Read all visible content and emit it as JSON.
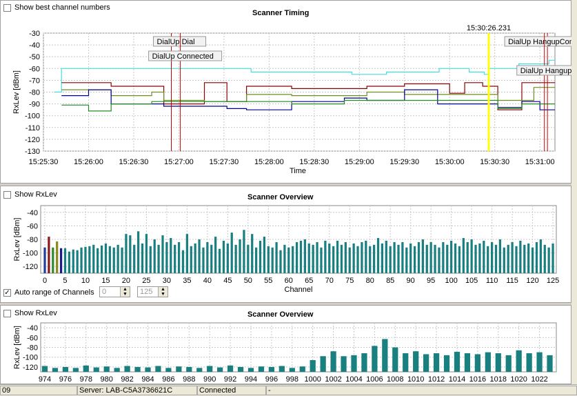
{
  "timing": {
    "checkbox_label": "Show best channel numbers",
    "title": "Scanner Timing",
    "cursor_time": "15:30:26.231",
    "ylabel": "RxLev [dBm]",
    "xlabel": "Time",
    "events": [
      {
        "label": "DialUp Dial",
        "color": "#c00000"
      },
      {
        "label": "DialUp Connected",
        "color": "#c00000"
      },
      {
        "label": "DialUp HangupCompleted",
        "color": "#c00000"
      },
      {
        "label": "DialUp Hangup",
        "color": "#c00000"
      }
    ]
  },
  "overview1": {
    "checkbox_label": "Show RxLev",
    "title": "Scanner Overview",
    "ylabel": "RxLev [dBm]",
    "xlabel": "Channel"
  },
  "auto_range": {
    "label": "Auto range of Channels",
    "min": "0",
    "max": "125"
  },
  "overview2": {
    "checkbox_label": "Show RxLev",
    "title": "Scanner Overview",
    "ylabel": "RxLev [dBm]"
  },
  "status": {
    "left": "09",
    "server": "Server: LAB-C5A3736621C",
    "state": "Connected",
    "extra": "-"
  },
  "colors": {
    "bar": "#1a7f7f",
    "accent": "#00e0e0",
    "cursor": "#ffff00"
  },
  "chart_data": [
    {
      "type": "line",
      "title": "Scanner Timing",
      "xlabel": "Time",
      "ylabel": "RxLev [dBm]",
      "ylim": [
        -130,
        -30
      ],
      "yticks": [
        -30,
        -40,
        -50,
        -60,
        -70,
        -80,
        -90,
        -100,
        -110,
        -120,
        -130
      ],
      "xlim_sec": [
        0,
        340
      ],
      "xticks": [
        {
          "t": 0,
          "label": "15:25:30"
        },
        {
          "t": 30,
          "label": "15:26:00"
        },
        {
          "t": 60,
          "label": "15:26:30"
        },
        {
          "t": 90,
          "label": "15:27:00"
        },
        {
          "t": 120,
          "label": "15:27:30"
        },
        {
          "t": 150,
          "label": "15:28:00"
        },
        {
          "t": 180,
          "label": "15:28:30"
        },
        {
          "t": 210,
          "label": "15:29:00"
        },
        {
          "t": 240,
          "label": "15:29:30"
        },
        {
          "t": 270,
          "label": "15:30:00"
        },
        {
          "t": 300,
          "label": "15:30:30"
        },
        {
          "t": 330,
          "label": "15:31:00"
        }
      ],
      "cursor_t": 296,
      "event_times": [
        85,
        91,
        335,
        333
      ],
      "series": [
        {
          "name": "cyan",
          "color": "#40e0e0",
          "points": [
            [
              7,
              -80
            ],
            [
              12,
              -80
            ],
            [
              12,
              -60
            ],
            [
              138,
              -60
            ],
            [
              138,
              -63
            ],
            [
              205,
              -63
            ],
            [
              205,
              -65
            ],
            [
              228,
              -65
            ],
            [
              228,
              -63
            ],
            [
              263,
              -63
            ],
            [
              263,
              -60
            ],
            [
              283,
              -60
            ],
            [
              283,
              -63
            ],
            [
              293,
              -63
            ],
            [
              293,
              -65
            ],
            [
              296,
              -65
            ],
            [
              296,
              -60
            ],
            [
              316,
              -60
            ],
            [
              316,
              -56
            ],
            [
              336,
              -56
            ],
            [
              336,
              -53
            ],
            [
              340,
              -53
            ]
          ]
        },
        {
          "name": "darkred",
          "color": "#8b0000",
          "points": [
            [
              12,
              -72
            ],
            [
              45,
              -72
            ],
            [
              45,
              -75
            ],
            [
              80,
              -75
            ],
            [
              80,
              -90
            ],
            [
              107,
              -90
            ],
            [
              107,
              -72
            ],
            [
              122,
              -72
            ],
            [
              122,
              -88
            ],
            [
              135,
              -88
            ],
            [
              135,
              -75
            ],
            [
              165,
              -75
            ],
            [
              165,
              -77
            ],
            [
              215,
              -77
            ],
            [
              215,
              -75
            ],
            [
              240,
              -75
            ],
            [
              240,
              -73
            ],
            [
              270,
              -73
            ],
            [
              270,
              -81
            ],
            [
              280,
              -81
            ],
            [
              280,
              -72
            ],
            [
              292,
              -72
            ],
            [
              292,
              -75
            ],
            [
              302,
              -75
            ],
            [
              302,
              -95
            ],
            [
              318,
              -95
            ],
            [
              318,
              -72
            ],
            [
              340,
              -72
            ]
          ]
        },
        {
          "name": "olive",
          "color": "#6b8e23",
          "points": [
            [
              12,
              -78
            ],
            [
              45,
              -78
            ],
            [
              45,
              -83
            ],
            [
              72,
              -83
            ],
            [
              72,
              -80
            ],
            [
              80,
              -80
            ],
            [
              80,
              -87
            ],
            [
              107,
              -87
            ],
            [
              107,
              -88
            ],
            [
              135,
              -88
            ],
            [
              135,
              -82
            ],
            [
              165,
              -82
            ],
            [
              165,
              -83
            ],
            [
              215,
              -83
            ],
            [
              215,
              -80
            ],
            [
              240,
              -80
            ],
            [
              240,
              -82
            ],
            [
              302,
              -82
            ],
            [
              302,
              -87
            ],
            [
              326,
              -87
            ],
            [
              326,
              -76
            ],
            [
              340,
              -76
            ]
          ]
        },
        {
          "name": "blue",
          "color": "#00008b",
          "points": [
            [
              12,
              -83
            ],
            [
              30,
              -83
            ],
            [
              30,
              -78
            ],
            [
              45,
              -78
            ],
            [
              45,
              -90
            ],
            [
              80,
              -90
            ],
            [
              80,
              -92
            ],
            [
              122,
              -92
            ],
            [
              122,
              -94
            ],
            [
              135,
              -94
            ],
            [
              135,
              -95
            ],
            [
              165,
              -95
            ],
            [
              165,
              -88
            ],
            [
              200,
              -88
            ],
            [
              200,
              -85
            ],
            [
              215,
              -85
            ],
            [
              215,
              -87
            ],
            [
              240,
              -87
            ],
            [
              240,
              -78
            ],
            [
              262,
              -78
            ],
            [
              262,
              -90
            ],
            [
              302,
              -90
            ],
            [
              302,
              -93
            ],
            [
              318,
              -93
            ],
            [
              318,
              -88
            ],
            [
              330,
              -88
            ],
            [
              330,
              -95
            ],
            [
              340,
              -95
            ]
          ]
        },
        {
          "name": "green",
          "color": "#228b22",
          "points": [
            [
              12,
              -91
            ],
            [
              30,
              -91
            ],
            [
              30,
              -96
            ],
            [
              45,
              -96
            ],
            [
              45,
              -90
            ],
            [
              72,
              -90
            ],
            [
              72,
              -88
            ],
            [
              165,
              -88
            ],
            [
              165,
              -90
            ],
            [
              200,
              -90
            ],
            [
              200,
              -87
            ],
            [
              302,
              -87
            ],
            [
              302,
              -94
            ],
            [
              318,
              -94
            ],
            [
              318,
              -90
            ],
            [
              340,
              -90
            ]
          ]
        }
      ]
    },
    {
      "type": "bar",
      "title": "Scanner Overview",
      "xlabel": "Channel",
      "ylabel": "RxLev [dBm]",
      "ylim": [
        -130,
        -30
      ],
      "xlim": [
        0,
        125
      ],
      "yticks": [
        -40,
        -60,
        -80,
        -100,
        -120
      ],
      "xticks": [
        0,
        5,
        10,
        15,
        20,
        25,
        30,
        35,
        40,
        45,
        50,
        55,
        60,
        65,
        70,
        75,
        80,
        85,
        90,
        95,
        100,
        105,
        110,
        115,
        120,
        125
      ],
      "channels": [
        0,
        1,
        2,
        3,
        4,
        5,
        6,
        7,
        8,
        9,
        10,
        11,
        12,
        13,
        14,
        15,
        16,
        17,
        18,
        19,
        20,
        21,
        22,
        23,
        24,
        25,
        26,
        27,
        28,
        29,
        30,
        31,
        32,
        33,
        34,
        35,
        36,
        37,
        38,
        39,
        40,
        41,
        42,
        43,
        44,
        45,
        46,
        47,
        48,
        49,
        50,
        51,
        52,
        53,
        54,
        55,
        56,
        57,
        58,
        59,
        60,
        61,
        62,
        63,
        64,
        65,
        66,
        67,
        68,
        69,
        70,
        71,
        72,
        73,
        74,
        75,
        76,
        77,
        78,
        79,
        80,
        81,
        82,
        83,
        84,
        85,
        86,
        87,
        88,
        89,
        90,
        91,
        92,
        93,
        94,
        95,
        96,
        97,
        98,
        99,
        100,
        101,
        102,
        103,
        104,
        105,
        106,
        107,
        108,
        109,
        110,
        111,
        112,
        113,
        114,
        115,
        116,
        117,
        118,
        119,
        120,
        121,
        122,
        123,
        124,
        125
      ],
      "values": [
        -92,
        -76,
        -92,
        -83,
        -93,
        -93,
        -98,
        -95,
        -96,
        -92,
        -91,
        -90,
        -88,
        -93,
        -89,
        -86,
        -90,
        -92,
        -88,
        -92,
        -72,
        -74,
        -88,
        -68,
        -86,
        -72,
        -90,
        -80,
        -88,
        -74,
        -84,
        -78,
        -88,
        -84,
        -96,
        -72,
        -90,
        -86,
        -80,
        -92,
        -84,
        -88,
        -76,
        -94,
        -82,
        -86,
        -70,
        -88,
        -80,
        -66,
        -88,
        -72,
        -92,
        -82,
        -76,
        -90,
        -92,
        -84,
        -96,
        -88,
        -92,
        -90,
        -84,
        -82,
        -80,
        -86,
        -88,
        -84,
        -92,
        -82,
        -86,
        -90,
        -82,
        -88,
        -84,
        -92,
        -86,
        -90,
        -84,
        -82,
        -90,
        -88,
        -78,
        -86,
        -82,
        -90,
        -84,
        -88,
        -84,
        -92,
        -86,
        -90,
        -84,
        -80,
        -88,
        -84,
        -88,
        -92,
        -84,
        -88,
        -82,
        -86,
        -90,
        -78,
        -84,
        -80,
        -88,
        -86,
        -82,
        -90,
        -84,
        -88,
        -80,
        -92,
        -88,
        -84,
        -90,
        -82,
        -88,
        -86,
        -92,
        -84,
        -80,
        -88,
        -92,
        -86
      ],
      "highlight": {
        "0": "#1f3fa0",
        "1": "#8b1a1a",
        "2": "#2e8b2e",
        "3": "#8b8b1a",
        "4": "#1a1a8b"
      }
    },
    {
      "type": "bar",
      "title": "Scanner Overview",
      "ylabel": "RxLev [dBm]",
      "ylim": [
        -130,
        -30
      ],
      "xlim": [
        974,
        1023
      ],
      "yticks": [
        -40,
        -60,
        -80,
        -100,
        -120
      ],
      "xticks": [
        974,
        976,
        978,
        980,
        982,
        984,
        986,
        988,
        990,
        992,
        994,
        996,
        998,
        1000,
        1002,
        1004,
        1006,
        1008,
        1010,
        1012,
        1014,
        1016,
        1018,
        1020,
        1022
      ],
      "channels": [
        974,
        975,
        976,
        977,
        978,
        979,
        980,
        981,
        982,
        983,
        984,
        985,
        986,
        987,
        988,
        989,
        990,
        991,
        992,
        993,
        994,
        995,
        996,
        997,
        998,
        999,
        1000,
        1001,
        1002,
        1003,
        1004,
        1005,
        1006,
        1007,
        1008,
        1009,
        1010,
        1011,
        1012,
        1013,
        1014,
        1015,
        1016,
        1017,
        1018,
        1019,
        1020,
        1021,
        1022,
        1023
      ],
      "values": [
        -118,
        -122,
        -120,
        -122,
        -117,
        -121,
        -119,
        -122,
        -118,
        -120,
        -121,
        -118,
        -122,
        -119,
        -120,
        -122,
        -118,
        -121,
        -117,
        -120,
        -122,
        -119,
        -120,
        -118,
        -122,
        -119,
        -106,
        -98,
        -88,
        -98,
        -96,
        -92,
        -77,
        -63,
        -80,
        -92,
        -88,
        -94,
        -92,
        -96,
        -89,
        -92,
        -94,
        -90,
        -92,
        -96,
        -86,
        -92,
        -90,
        -96
      ]
    }
  ]
}
